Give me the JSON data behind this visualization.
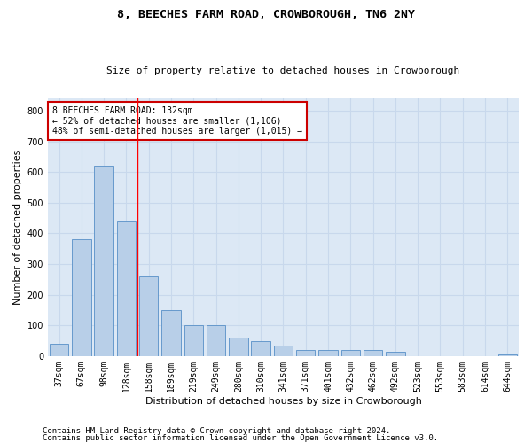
{
  "title": "8, BEECHES FARM ROAD, CROWBOROUGH, TN6 2NY",
  "subtitle": "Size of property relative to detached houses in Crowborough",
  "xlabel": "Distribution of detached houses by size in Crowborough",
  "ylabel": "Number of detached properties",
  "categories": [
    "37sqm",
    "67sqm",
    "98sqm",
    "128sqm",
    "158sqm",
    "189sqm",
    "219sqm",
    "249sqm",
    "280sqm",
    "310sqm",
    "341sqm",
    "371sqm",
    "401sqm",
    "432sqm",
    "462sqm",
    "492sqm",
    "523sqm",
    "553sqm",
    "583sqm",
    "614sqm",
    "644sqm"
  ],
  "values": [
    40,
    380,
    620,
    440,
    260,
    150,
    100,
    100,
    60,
    50,
    35,
    20,
    20,
    20,
    20,
    15,
    0,
    0,
    0,
    0,
    5
  ],
  "bar_color": "#b8cfe8",
  "bar_edge_color": "#6699cc",
  "grid_color": "#c8d8ec",
  "background_color": "#dce8f5",
  "annotation_box_text": "8 BEECHES FARM ROAD: 132sqm\n← 52% of detached houses are smaller (1,106)\n48% of semi-detached houses are larger (1,015) →",
  "annotation_box_color": "#ffffff",
  "annotation_box_edge_color": "#cc0000",
  "red_line_x": 3.5,
  "ylim": [
    0,
    840
  ],
  "yticks": [
    0,
    100,
    200,
    300,
    400,
    500,
    600,
    700,
    800
  ],
  "footer1": "Contains HM Land Registry data © Crown copyright and database right 2024.",
  "footer2": "Contains public sector information licensed under the Open Government Licence v3.0.",
  "title_fontsize": 9.5,
  "subtitle_fontsize": 8,
  "xlabel_fontsize": 8,
  "ylabel_fontsize": 8,
  "tick_fontsize": 7,
  "annot_fontsize": 7,
  "footer_fontsize": 6.5
}
